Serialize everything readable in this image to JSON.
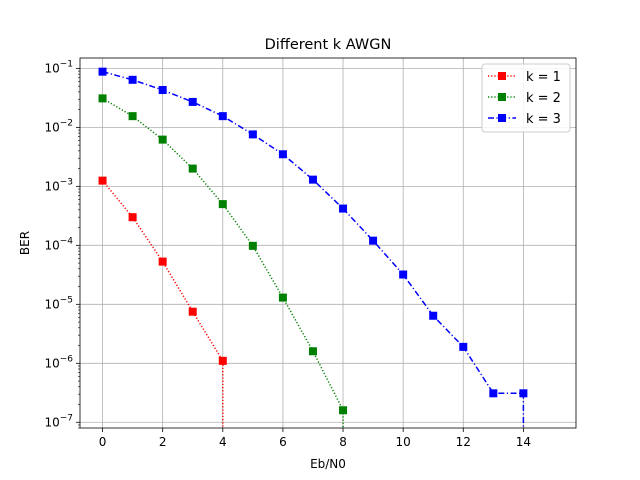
{
  "chart_data": {
    "type": "line",
    "title": "Different k AWGN",
    "xlabel": "Eb/N0",
    "ylabel": "BER",
    "xlim": [
      -0.75,
      15.75
    ],
    "ylim": [
      8e-08,
      0.15
    ],
    "yscale": "log",
    "grid": true,
    "legend_position": "top-right",
    "x_ticks": [
      0,
      2,
      4,
      6,
      8,
      10,
      12,
      14
    ],
    "y_ticks": [
      {
        "value": 1e-07,
        "label": "10",
        "exp": "−7"
      },
      {
        "value": 1e-06,
        "label": "10",
        "exp": "−6"
      },
      {
        "value": 1e-05,
        "label": "10",
        "exp": "−5"
      },
      {
        "value": 0.0001,
        "label": "10",
        "exp": "−4"
      },
      {
        "value": 0.001,
        "label": "10",
        "exp": "−3"
      },
      {
        "value": 0.01,
        "label": "10",
        "exp": "−2"
      },
      {
        "value": 0.1,
        "label": "10",
        "exp": "−1"
      }
    ],
    "series": [
      {
        "name": "k = 1",
        "color": "#ff0000",
        "linestyle": "dotted",
        "x": [
          0,
          1,
          2,
          3,
          4,
          4
        ],
        "y": [
          0.00125,
          0.0003,
          5.3e-05,
          7.5e-06,
          1.1e-06,
          0
        ]
      },
      {
        "name": "k = 2",
        "color": "#008000",
        "linestyle": "dotted",
        "x": [
          0,
          1,
          2,
          3,
          4,
          5,
          6,
          7,
          8,
          8
        ],
        "y": [
          0.031,
          0.0155,
          0.0062,
          0.002,
          0.0005,
          9.8e-05,
          1.3e-05,
          1.6e-06,
          1.6e-07,
          0
        ]
      },
      {
        "name": "k = 3",
        "color": "#0000ff",
        "linestyle": "dashdot",
        "x": [
          0,
          1,
          2,
          3,
          4,
          5,
          6,
          7,
          8,
          9,
          10,
          11,
          12,
          13,
          14,
          14
        ],
        "y": [
          0.088,
          0.064,
          0.043,
          0.027,
          0.0155,
          0.0076,
          0.0035,
          0.0013,
          0.00042,
          0.00012,
          3.2e-05,
          6.4e-06,
          1.9e-06,
          3.1e-07,
          3.1e-07,
          0
        ]
      }
    ]
  }
}
